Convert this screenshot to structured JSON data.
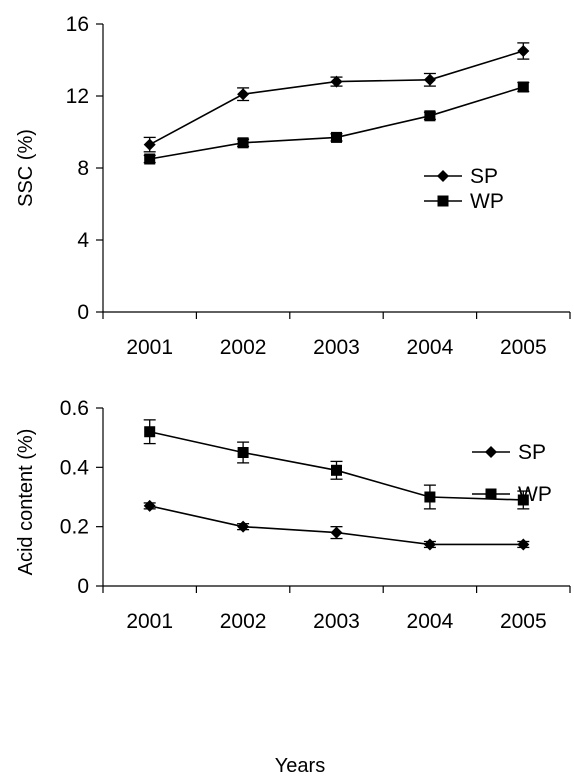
{
  "chart_data": [
    {
      "type": "line",
      "title": "",
      "xlabel": "",
      "ylabel": "SSC (%)",
      "x": [
        "2001",
        "2002",
        "2003",
        "2004",
        "2005"
      ],
      "ylim": [
        0,
        16
      ],
      "yticks": [
        "0",
        "4",
        "8",
        "12",
        "16"
      ],
      "grid": false,
      "legend_position": "right-middle",
      "series": [
        {
          "name": "SP",
          "marker": "diamond",
          "values": [
            9.3,
            12.1,
            12.8,
            12.9,
            14.5
          ],
          "errors": [
            0.4,
            0.35,
            0.25,
            0.35,
            0.45
          ]
        },
        {
          "name": "WP",
          "marker": "square",
          "values": [
            8.5,
            9.4,
            9.7,
            10.9,
            12.5
          ],
          "errors": [
            0.2,
            0.2,
            0.2,
            0.2,
            0.25
          ]
        }
      ]
    },
    {
      "type": "line",
      "title": "",
      "xlabel": "Years",
      "ylabel": "Acid content (%)",
      "x": [
        "2001",
        "2002",
        "2003",
        "2004",
        "2005"
      ],
      "ylim": [
        0,
        0.6
      ],
      "yticks": [
        "0",
        "0.2",
        "0.4",
        "0.6"
      ],
      "grid": false,
      "legend_position": "top-right",
      "series": [
        {
          "name": "SP",
          "marker": "diamond",
          "values": [
            0.27,
            0.2,
            0.18,
            0.14,
            0.14
          ],
          "errors": [
            0.01,
            0.01,
            0.02,
            0.01,
            0.01
          ]
        },
        {
          "name": "WP",
          "marker": "square",
          "values": [
            0.52,
            0.45,
            0.39,
            0.3,
            0.29
          ],
          "errors": [
            0.04,
            0.035,
            0.03,
            0.04,
            0.03
          ]
        }
      ]
    }
  ]
}
